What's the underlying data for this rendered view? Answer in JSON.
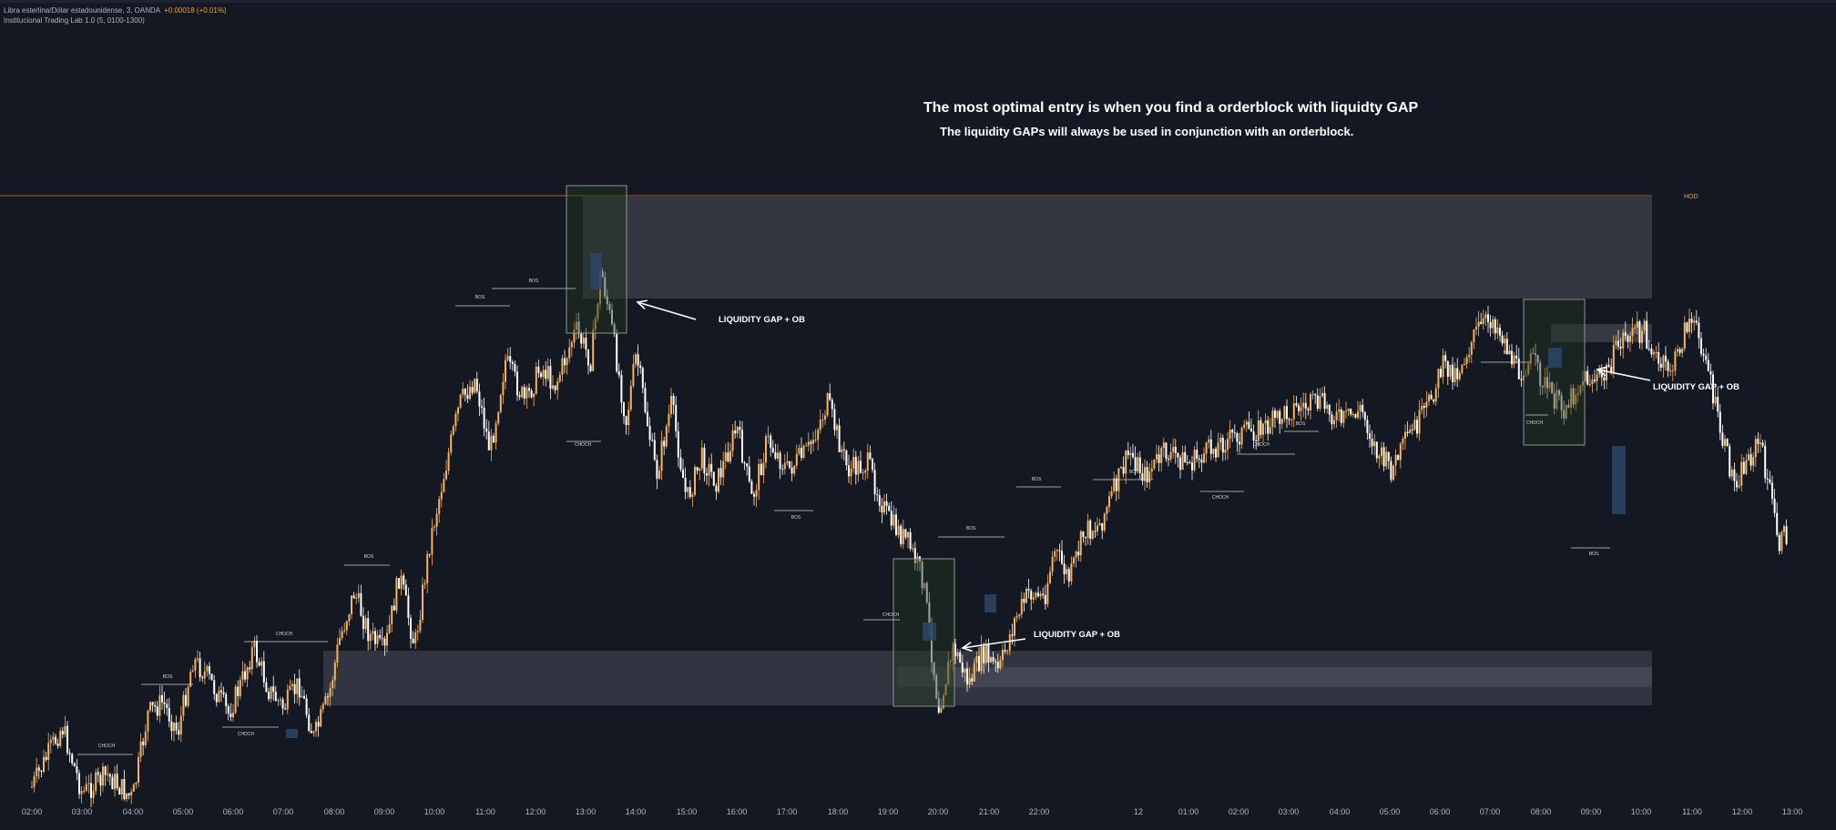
{
  "legend": {
    "symbol_line": "Libra esterlina/Dólar estadounidense, 3, OANDA",
    "change": "+0.00018 (+0.01%)",
    "indicator_line": "Institucional Trading Lab 1.0 (5, 0100-1300)"
  },
  "annotations": {
    "headline": "The most optimal entry is when you find a orderblock with liquidty GAP",
    "subhead": "The liquidity GAPs will always be used in conjunction with an orderblock.",
    "callout": "LIQUIDITY GAP + OB",
    "hod_label": "HOD"
  },
  "colors": {
    "background": "#141823",
    "candle_up": "#f7b35a",
    "candle_down": "#ffffff",
    "hod_line": "#a86a12",
    "zone_fill": "#3a3d48",
    "ob_fill": "#22341f",
    "gap_fill": "#2c4766"
  },
  "chart_data": {
    "type": "candlestick",
    "title": "Libra esterlina/Dólar estadounidense, 3, OANDA",
    "x_ticks": [
      "02:00",
      "03:00",
      "04:00",
      "05:00",
      "06:00",
      "07:00",
      "08:00",
      "09:00",
      "10:00",
      "11:00",
      "12:00",
      "13:00",
      "14:00",
      "15:00",
      "16:00",
      "17:00",
      "18:00",
      "19:00",
      "20:00",
      "21:00",
      "22:00",
      "12",
      "01:00",
      "02:00",
      "03:00",
      "04:00",
      "05:00",
      "06:00",
      "07:00",
      "08:00",
      "09:00",
      "10:00",
      "11:00",
      "12:00",
      "13:00"
    ],
    "path_price_normalized": [
      [
        0.0,
        0.03
      ],
      [
        0.6,
        0.13
      ],
      [
        1.0,
        0.02
      ],
      [
        1.5,
        0.05
      ],
      [
        2.0,
        0.01
      ],
      [
        2.3,
        0.15
      ],
      [
        2.6,
        0.17
      ],
      [
        2.9,
        0.12
      ],
      [
        3.2,
        0.24
      ],
      [
        3.5,
        0.21
      ],
      [
        3.9,
        0.15
      ],
      [
        4.2,
        0.21
      ],
      [
        4.4,
        0.26
      ],
      [
        4.7,
        0.19
      ],
      [
        5.0,
        0.16
      ],
      [
        5.3,
        0.2
      ],
      [
        5.6,
        0.11
      ],
      [
        5.9,
        0.18
      ],
      [
        6.1,
        0.27
      ],
      [
        6.4,
        0.35
      ],
      [
        6.7,
        0.28
      ],
      [
        7.0,
        0.25
      ],
      [
        7.3,
        0.38
      ],
      [
        7.6,
        0.26
      ],
      [
        7.9,
        0.43
      ],
      [
        8.2,
        0.55
      ],
      [
        8.5,
        0.66
      ],
      [
        8.8,
        0.7
      ],
      [
        9.1,
        0.58
      ],
      [
        9.4,
        0.73
      ],
      [
        9.8,
        0.66
      ],
      [
        10.1,
        0.72
      ],
      [
        10.4,
        0.69
      ],
      [
        10.8,
        0.78
      ],
      [
        11.1,
        0.73
      ],
      [
        11.3,
        0.88
      ],
      [
        11.5,
        0.79
      ],
      [
        11.8,
        0.63
      ],
      [
        12.0,
        0.74
      ],
      [
        12.4,
        0.54
      ],
      [
        12.7,
        0.66
      ],
      [
        13.0,
        0.5
      ],
      [
        13.3,
        0.57
      ],
      [
        13.6,
        0.53
      ],
      [
        14.0,
        0.62
      ],
      [
        14.3,
        0.5
      ],
      [
        14.6,
        0.6
      ],
      [
        15.0,
        0.55
      ],
      [
        15.4,
        0.58
      ],
      [
        15.8,
        0.66
      ],
      [
        16.2,
        0.55
      ],
      [
        16.6,
        0.56
      ],
      [
        17.0,
        0.47
      ],
      [
        17.4,
        0.43
      ],
      [
        17.7,
        0.37
      ],
      [
        18.0,
        0.16
      ],
      [
        18.3,
        0.26
      ],
      [
        18.6,
        0.2
      ],
      [
        18.9,
        0.25
      ],
      [
        19.2,
        0.22
      ],
      [
        19.5,
        0.3
      ],
      [
        19.8,
        0.35
      ],
      [
        20.1,
        0.34
      ],
      [
        20.3,
        0.42
      ],
      [
        20.6,
        0.37
      ],
      [
        20.9,
        0.45
      ],
      [
        21.2,
        0.46
      ],
      [
        21.5,
        0.52
      ],
      [
        21.8,
        0.58
      ],
      [
        22.1,
        0.54
      ],
      [
        22.5,
        0.58
      ],
      [
        23.0,
        0.56
      ],
      [
        23.5,
        0.59
      ],
      [
        24.0,
        0.61
      ],
      [
        24.5,
        0.62
      ],
      [
        25.0,
        0.65
      ],
      [
        25.6,
        0.66
      ],
      [
        26.0,
        0.63
      ],
      [
        26.4,
        0.65
      ],
      [
        26.7,
        0.58
      ],
      [
        27.0,
        0.55
      ],
      [
        27.3,
        0.6
      ],
      [
        27.7,
        0.65
      ],
      [
        28.0,
        0.72
      ],
      [
        28.3,
        0.71
      ],
      [
        28.7,
        0.78
      ],
      [
        29.0,
        0.8
      ],
      [
        29.2,
        0.77
      ],
      [
        29.5,
        0.71
      ],
      [
        29.8,
        0.73
      ],
      [
        30.1,
        0.68
      ],
      [
        30.4,
        0.65
      ],
      [
        30.8,
        0.7
      ],
      [
        31.2,
        0.7
      ],
      [
        31.6,
        0.77
      ],
      [
        32.0,
        0.78
      ],
      [
        32.3,
        0.72
      ],
      [
        32.6,
        0.72
      ],
      [
        32.9,
        0.8
      ],
      [
        33.2,
        0.75
      ],
      [
        33.5,
        0.62
      ],
      [
        33.8,
        0.53
      ],
      [
        34.1,
        0.57
      ],
      [
        34.3,
        0.6
      ],
      [
        34.5,
        0.52
      ],
      [
        34.7,
        0.43
      ],
      [
        34.9,
        0.45
      ]
    ],
    "structure_labels": [
      {
        "text": "CHOCH"
      },
      {
        "text": "BOS"
      },
      {
        "text": "CHOCH"
      },
      {
        "text": "CHOCH"
      },
      {
        "text": "BOS"
      },
      {
        "text": "BOS"
      },
      {
        "text": "BOS"
      },
      {
        "text": "CHOCH"
      },
      {
        "text": "BOS"
      },
      {
        "text": "CHOCH"
      },
      {
        "text": "BOS"
      },
      {
        "text": "BOS"
      },
      {
        "text": "BOS"
      },
      {
        "text": "CHOCH"
      },
      {
        "text": "CHOCH"
      },
      {
        "text": "BOS"
      },
      {
        "text": "BOS"
      },
      {
        "text": "CHOCH"
      },
      {
        "text": "BOS"
      }
    ]
  }
}
